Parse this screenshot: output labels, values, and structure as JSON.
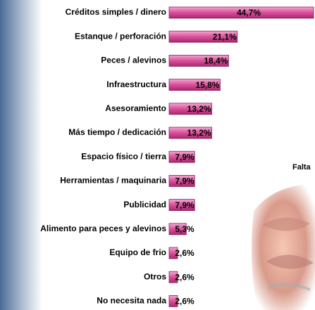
{
  "chart_data": {
    "type": "bar",
    "orientation": "horizontal",
    "categories": [
      "Créditos simples / dinero",
      "Estanque / perforación",
      "Peces / alevinos",
      "Infraestructura",
      "Asesoramiento",
      "Más tiempo / dedicación",
      "Espacio físico / tierra",
      "Herramientas / maquinaria",
      "Publicidad",
      "Alimento para peces y alevinos",
      "Equipo de frio",
      "Otros",
      "No necesita nada"
    ],
    "values": [
      44.7,
      21.1,
      18.4,
      15.8,
      13.2,
      13.2,
      7.9,
      7.9,
      7.9,
      5.3,
      2.6,
      2.6,
      2.6
    ],
    "value_labels": [
      "44,7%",
      "21,1%",
      "18,4%",
      "15,8%",
      "13,2%",
      "13,2%",
      "7,9%",
      "7,9%",
      "7,9%",
      "5,3%",
      "2,6%",
      "2,6%",
      "2,6%"
    ],
    "color": "#d94f9a",
    "annotation": "Falta"
  }
}
